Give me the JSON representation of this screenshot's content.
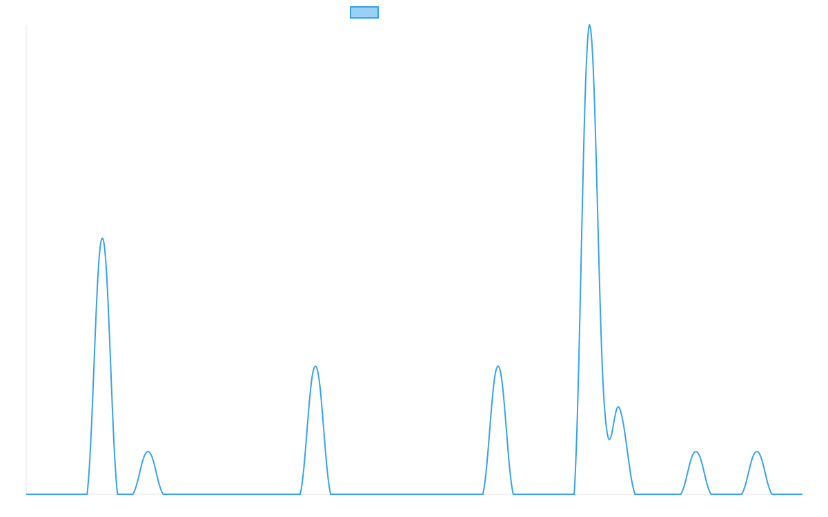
{
  "chart_data": {
    "type": "line",
    "title": "",
    "xlabel": "",
    "ylabel": "",
    "legend": {
      "placement": "top-center",
      "label": ""
    },
    "grid": false,
    "xlim": [
      0,
      51
    ],
    "ylim": [
      0,
      11
    ],
    "series": [
      {
        "name": "",
        "color": "#36a2eb",
        "fill": "#9ad0f5",
        "x": [
          0,
          1,
          2,
          3,
          4,
          5,
          6,
          7,
          8,
          9,
          10,
          11,
          12,
          13,
          14,
          15,
          16,
          17,
          18,
          19,
          20,
          21,
          22,
          23,
          24,
          25,
          26,
          27,
          28,
          29,
          30,
          31,
          32,
          33,
          34,
          35,
          36,
          37,
          38,
          39,
          40,
          41,
          42,
          43,
          44,
          45,
          46,
          47,
          48,
          49,
          50,
          51
        ],
        "y": [
          0,
          0,
          0,
          0,
          0,
          6,
          0,
          0,
          1,
          0,
          0,
          0,
          0,
          0,
          0,
          0,
          0,
          0,
          0,
          3,
          0,
          0,
          0,
          0,
          0,
          0,
          0,
          0,
          0,
          0,
          0,
          3,
          0,
          0,
          0,
          0,
          0,
          11,
          2,
          2,
          0,
          0,
          0,
          0,
          1,
          0,
          0,
          0,
          1,
          0,
          0,
          0
        ]
      }
    ]
  }
}
